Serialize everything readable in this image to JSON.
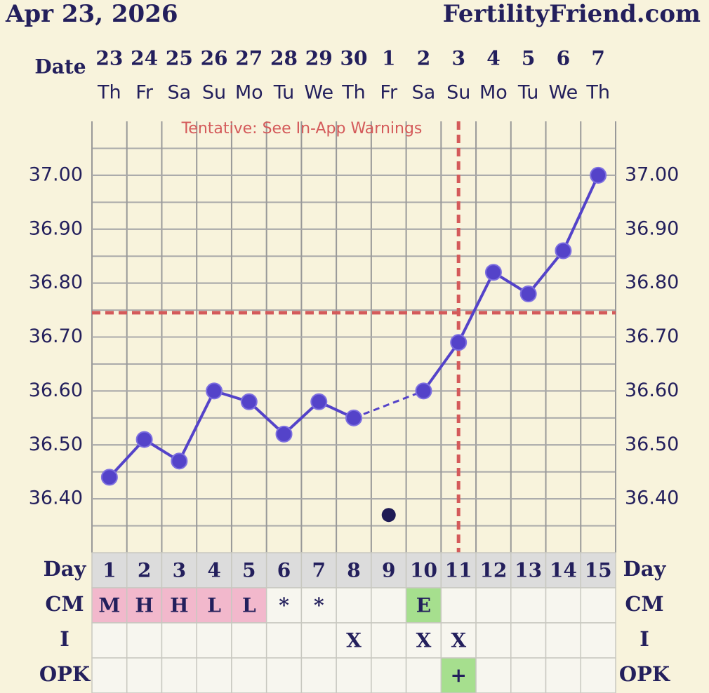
{
  "header": {
    "date": "Apr 23, 2026",
    "site": "FertilityFriend.com"
  },
  "chart_data": {
    "type": "line",
    "x_label": "Date",
    "categories": [
      "23",
      "24",
      "25",
      "26",
      "27",
      "28",
      "29",
      "30",
      "1",
      "2",
      "3",
      "4",
      "5",
      "6",
      "7"
    ],
    "weekdays": [
      "Th",
      "Fr",
      "Sa",
      "Su",
      "Mo",
      "Tu",
      "We",
      "Th",
      "Fr",
      "Sa",
      "Su",
      "Mo",
      "Tu",
      "We",
      "Th"
    ],
    "values": [
      36.44,
      36.51,
      36.47,
      36.6,
      36.58,
      36.52,
      36.58,
      36.55,
      null,
      36.6,
      36.69,
      36.82,
      36.78,
      36.86,
      37.0
    ],
    "discarded": [
      null,
      null,
      null,
      null,
      null,
      null,
      null,
      null,
      36.37,
      null,
      null,
      null,
      null,
      null,
      null
    ],
    "color": "#5443c9",
    "discarded_color": "#1f1b55",
    "ylim": [
      36.3,
      37.1
    ],
    "yticks": [
      {
        "value": 36.4,
        "label": "36.40"
      },
      {
        "value": 36.5,
        "label": "36.50"
      },
      {
        "value": 36.6,
        "label": "36.60"
      },
      {
        "value": 36.7,
        "label": "36.70"
      },
      {
        "value": 36.8,
        "label": "36.80"
      },
      {
        "value": 36.9,
        "label": "36.90"
      },
      {
        "value": 37.0,
        "label": "37.00"
      }
    ],
    "grid": true,
    "annotation": "Tentative: See In-App Warnings",
    "coverline": 36.745,
    "ovulation_day": 11,
    "marker_color": "#d45a5a"
  },
  "table": {
    "rows": [
      {
        "label": "Day",
        "fill": "#dcdcdc",
        "cells": [
          1,
          2,
          3,
          4,
          5,
          6,
          7,
          8,
          9,
          10,
          11,
          12,
          13,
          14,
          15
        ]
      },
      {
        "label": "CM",
        "cell_colors": {
          "M": "#f2b8cc",
          "H": "#f2b8cc",
          "L": "#f2b8cc",
          "E": "#a6df8e"
        },
        "cells": [
          "M",
          "H",
          "H",
          "L",
          "L",
          "*",
          "*",
          null,
          null,
          "E",
          null,
          null,
          null,
          null,
          null
        ]
      },
      {
        "label": "I",
        "cells": [
          null,
          null,
          null,
          null,
          null,
          null,
          null,
          "X",
          null,
          "X",
          "X",
          null,
          null,
          null,
          null
        ]
      },
      {
        "label": "OPK",
        "cell_colors": {
          "+": "#a6df8e"
        },
        "cells": [
          null,
          null,
          null,
          null,
          null,
          null,
          null,
          null,
          null,
          null,
          "+",
          null,
          null,
          null,
          null
        ]
      }
    ]
  }
}
